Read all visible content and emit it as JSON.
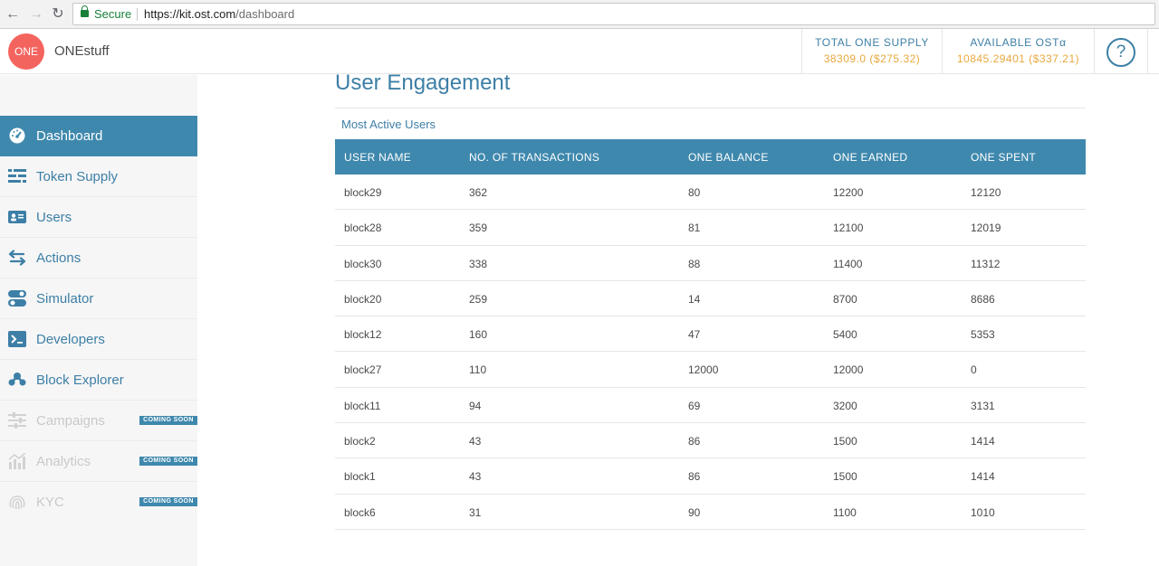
{
  "browser": {
    "secure_label": "Secure",
    "url_host": "https://kit.ost.com",
    "url_path": "/dashboard"
  },
  "header": {
    "logo_text": "ONE",
    "brand_name": "ONEstuff",
    "total_supply_title": "TOTAL ONE SUPPLY",
    "total_supply_value": "38309.0 ($275.32)",
    "available_title": "AVAILABLE OSTα",
    "available_value": "10845.29401 ($337.21)",
    "help_label": "?"
  },
  "sidebar": {
    "items": [
      {
        "label": "Dashboard",
        "icon": "dashboard-gauge-icon",
        "active": true
      },
      {
        "label": "Token Supply",
        "icon": "token-supply-icon"
      },
      {
        "label": "Users",
        "icon": "users-id-card-icon"
      },
      {
        "label": "Actions",
        "icon": "actions-arrows-icon"
      },
      {
        "label": "Simulator",
        "icon": "simulator-toggle-icon"
      },
      {
        "label": "Developers",
        "icon": "developers-terminal-icon"
      },
      {
        "label": "Block Explorer",
        "icon": "block-explorer-icon"
      },
      {
        "label": "Campaigns",
        "icon": "campaigns-sliders-icon",
        "badge": "COMING SOON"
      },
      {
        "label": "Analytics",
        "icon": "analytics-chart-icon",
        "badge": "COMING SOON"
      },
      {
        "label": "KYC",
        "icon": "kyc-fingerprint-icon",
        "badge": "COMING SOON"
      }
    ]
  },
  "main": {
    "title": "User Engagement",
    "section_title": "Most Active Users",
    "columns": [
      "USER NAME",
      "NO. OF TRANSACTIONS",
      "ONE BALANCE",
      "ONE EARNED",
      "ONE SPENT"
    ],
    "rows": [
      [
        "block29",
        "362",
        "80",
        "12200",
        "12120"
      ],
      [
        "block28",
        "359",
        "81",
        "12100",
        "12019"
      ],
      [
        "block30",
        "338",
        "88",
        "11400",
        "11312"
      ],
      [
        "block20",
        "259",
        "14",
        "8700",
        "8686"
      ],
      [
        "block12",
        "160",
        "47",
        "5400",
        "5353"
      ],
      [
        "block27",
        "110",
        "12000",
        "12000",
        "0"
      ],
      [
        "block11",
        "94",
        "69",
        "3200",
        "3131"
      ],
      [
        "block2",
        "43",
        "86",
        "1500",
        "1414"
      ],
      [
        "block1",
        "43",
        "86",
        "1500",
        "1414"
      ],
      [
        "block6",
        "31",
        "90",
        "1100",
        "1010"
      ]
    ]
  },
  "colors": {
    "accent": "#3f88ad",
    "brand": "#f4645f",
    "value": "#e7a83e"
  }
}
